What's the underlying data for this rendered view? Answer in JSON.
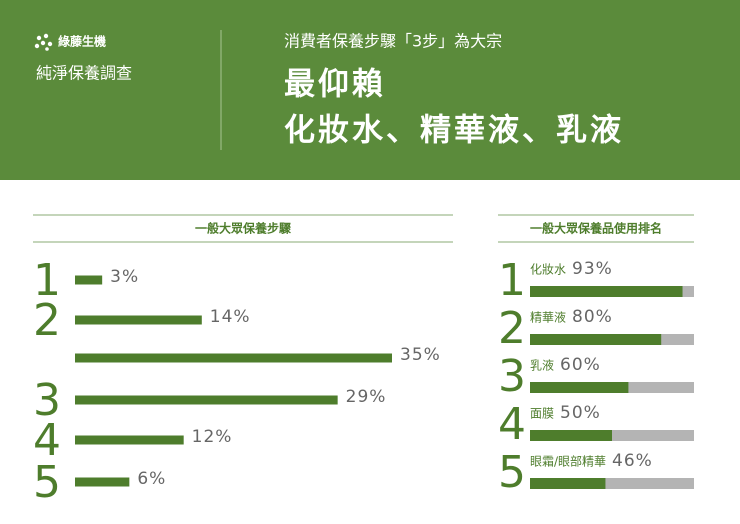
{
  "header": {
    "brand": "綠藤生機",
    "survey": "純淨保養調查",
    "subtitle": "消費者保養步驟「3步」為大宗",
    "title_lines": [
      "最仰賴",
      "化妝水、精華液、乳液"
    ]
  },
  "chart_data": [
    {
      "type": "hbar",
      "title": "一般大眾保養步驟",
      "color": "#4e7d2c",
      "categories": [
        "1",
        "2",
        null,
        "3",
        "4",
        "5"
      ],
      "values": [
        3,
        14,
        35,
        29,
        12,
        6
      ],
      "value_labels": [
        "3%",
        "14%",
        "35%",
        "29%",
        "12%",
        "6%"
      ]
    },
    {
      "type": "progress",
      "title": "一般大眾保養品使用排名",
      "color": "#4e7d2c",
      "track_color": "#b4b4b4",
      "ranks": [
        "1",
        "2",
        "3",
        "4",
        "5"
      ],
      "categories": [
        "化妝水",
        "精華液",
        "乳液",
        "面膜",
        "眼霜/眼部精華"
      ],
      "values": [
        93,
        80,
        60,
        50,
        46
      ],
      "value_labels": [
        "93%",
        "80%",
        "60%",
        "50%",
        "46%"
      ],
      "xlim": [
        0,
        100
      ]
    }
  ]
}
